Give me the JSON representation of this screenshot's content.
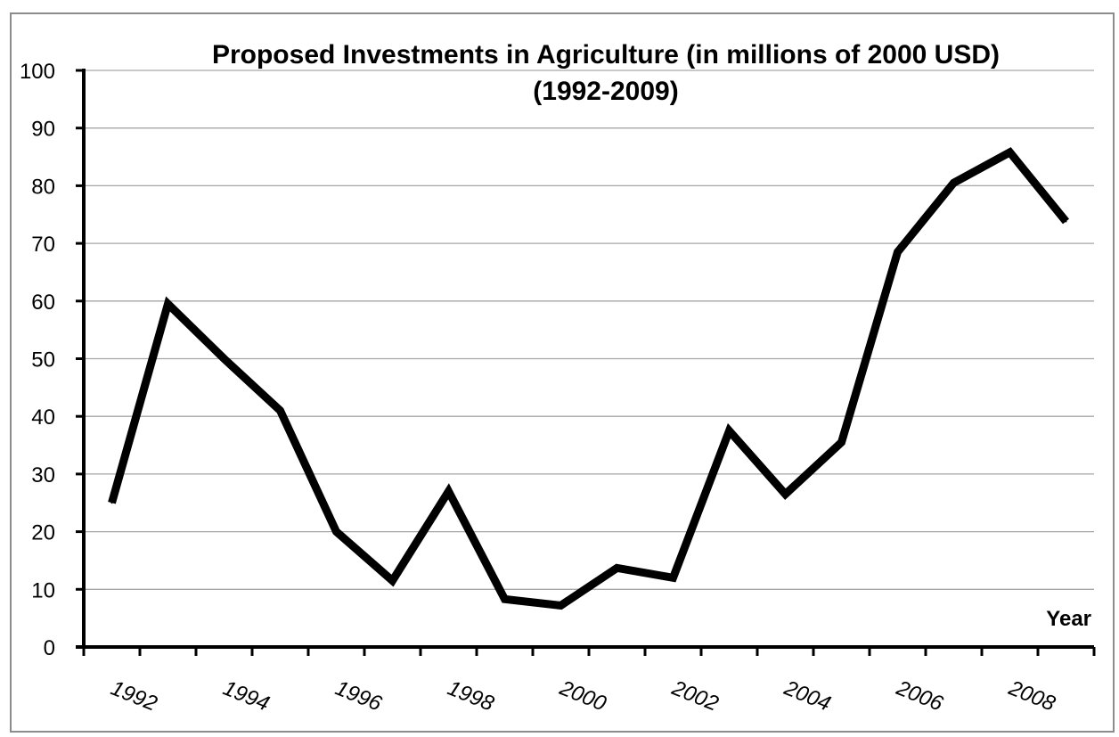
{
  "chart_data": {
    "type": "line",
    "title": "Proposed Investments in Agriculture (in millions of 2000 USD)",
    "subtitle": "(1992-2009)",
    "xlabel": "Year",
    "ylabel": "",
    "ylim": [
      0,
      100
    ],
    "yticks": [
      "0",
      "10",
      "20",
      "30",
      "40",
      "50",
      "60",
      "70",
      "80",
      "90",
      "100"
    ],
    "xtick_labels": [
      "1992",
      "1994",
      "1996",
      "1998",
      "2000",
      "2002",
      "2004",
      "2006",
      "2008"
    ],
    "grid": true,
    "legend": "none",
    "x": [
      1992,
      1993,
      1994,
      1995,
      1996,
      1997,
      1998,
      1999,
      2000,
      2001,
      2002,
      2003,
      2004,
      2005,
      2006,
      2007,
      2008,
      2009
    ],
    "series": [
      {
        "values": [
          25,
          59.5,
          50,
          41,
          20,
          11.5,
          27,
          8.3,
          7.2,
          13.7,
          12,
          37.5,
          26.5,
          35.5,
          68.5,
          80.5,
          85.8,
          73.8
        ],
        "color": "#000000"
      }
    ]
  }
}
